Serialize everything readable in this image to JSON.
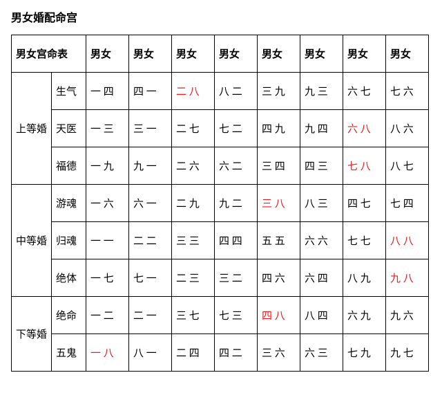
{
  "title": "男女婚配命宫",
  "header": {
    "col1_2": "男女宫命表",
    "data_cols": [
      "男女",
      "男女",
      "男女",
      "男女",
      "男女",
      "男女",
      "男女",
      "男女"
    ]
  },
  "groups": [
    {
      "name": "上等婚",
      "rows": [
        {
          "label": "生气",
          "cells": [
            "一 四",
            "四 一",
            "二 八",
            "八 二",
            "三 九",
            "九 三",
            "六 七",
            "七 六"
          ],
          "red_idx": [
            2
          ]
        },
        {
          "label": "天医",
          "cells": [
            "一 三",
            "三 一",
            "二 七",
            "七 二",
            "四 九",
            "九 四",
            "六 八",
            "八 六"
          ],
          "red_idx": [
            6
          ]
        },
        {
          "label": "福德",
          "cells": [
            "一 九",
            "九 一",
            "二 六",
            "六 二",
            "三 四",
            "四 三",
            "七 八",
            "八 七"
          ],
          "red_idx": [
            6
          ]
        }
      ]
    },
    {
      "name": "中等婚",
      "rows": [
        {
          "label": "游魂",
          "cells": [
            "一 六",
            "六 一",
            "二 九",
            "九 二",
            "三 八",
            "八 三",
            "四 七",
            "七 四"
          ],
          "red_idx": [
            4
          ]
        },
        {
          "label": "归魂",
          "cells": [
            "一 一",
            "二 二",
            "三 三",
            "四 四",
            "五 五",
            "六 六",
            "七 七",
            "八 八"
          ],
          "red_idx": [
            7
          ]
        },
        {
          "label": "绝体",
          "cells": [
            "一 七",
            "七 一",
            "二 三",
            "三 二",
            "四 六",
            "六 四",
            "八 九",
            "九 八"
          ],
          "red_idx": [
            7
          ]
        }
      ]
    },
    {
      "name": "下等婚",
      "rows": [
        {
          "label": "绝命",
          "cells": [
            "一 二",
            "二 一",
            "三 七",
            "七 三",
            "四 八",
            "八 四",
            "六 九",
            "九 六"
          ],
          "red_idx": [
            4
          ]
        },
        {
          "label": "五鬼",
          "cells": [
            "一 八",
            "八 一",
            "二 四",
            "四 二",
            "三 六",
            "六 三",
            "七 九",
            "九 七"
          ],
          "red_idx": [
            0
          ]
        }
      ]
    }
  ],
  "style": {
    "red_color": "#d22",
    "border_color": "#000000",
    "text_color": "#000000",
    "background": "#ffffff"
  }
}
